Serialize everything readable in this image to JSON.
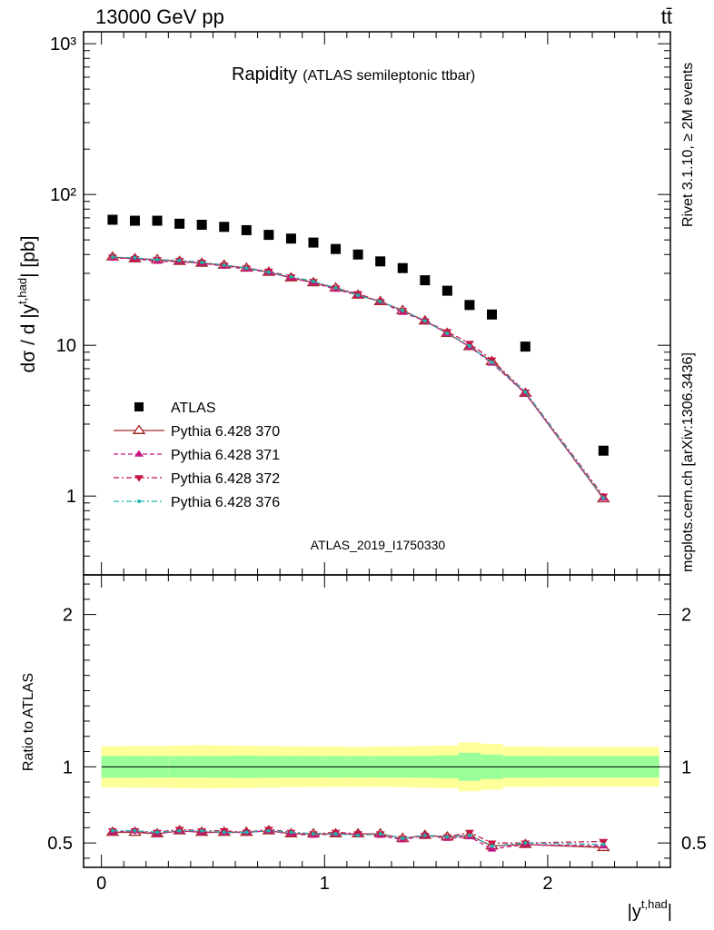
{
  "header": {
    "energy_label": "13000 GeV pp",
    "process_label": "tt̄"
  },
  "side_text": {
    "rivet": "Rivet 3.1.10, ≥ 2M events",
    "mcplots": "mcplots.cern.ch [arXiv:1306.3436]"
  },
  "chart_data": [
    {
      "type": "scatter",
      "title": "Rapidity",
      "subtitle": "(ATLAS semileptonic ttbar)",
      "analysis_label": "ATLAS_2019_I1750330",
      "ylabel": "dσ / d |y^{t,had}| [pb]",
      "y_scale": "log",
      "xlim": [
        -0.08,
        2.55
      ],
      "ylim": [
        0.3,
        1200
      ],
      "y_tick_labels": [
        "1",
        "10",
        "10²",
        "10³"
      ],
      "x_bin_edges": [
        0.0,
        0.1,
        0.2,
        0.3,
        0.4,
        0.5,
        0.6,
        0.7,
        0.8,
        0.9,
        1.0,
        1.1,
        1.2,
        1.3,
        1.4,
        1.5,
        1.6,
        1.7,
        1.8,
        2.0,
        2.5
      ],
      "x": [
        0.05,
        0.15,
        0.25,
        0.35,
        0.45,
        0.55,
        0.65,
        0.75,
        0.85,
        0.95,
        1.05,
        1.15,
        1.25,
        1.35,
        1.45,
        1.55,
        1.65,
        1.75,
        1.9,
        2.25
      ],
      "legend_position": "lower-left",
      "series": [
        {
          "name": "ATLAS",
          "style": "data-square",
          "color": "#000000",
          "values": [
            68,
            67,
            67,
            64,
            63,
            61,
            58,
            54,
            51,
            48,
            43.5,
            40,
            36,
            32.5,
            27,
            23,
            18.5,
            16,
            9.8,
            2.0
          ]
        },
        {
          "name": "Pythia 6.428 370",
          "style": "open-triangle-up-solid",
          "color": "#a52a2a",
          "values": [
            38.5,
            37.5,
            37,
            36,
            35,
            34,
            32.5,
            30.5,
            28,
            26,
            24,
            21.5,
            19.5,
            17,
            14.5,
            12,
            9.8,
            7.8,
            4.8,
            0.96
          ]
        },
        {
          "name": "Pythia 6.428 371",
          "style": "filled-triangle-up-dashed",
          "color": "#c71585",
          "values": [
            38,
            37.5,
            36,
            36,
            35,
            33.5,
            32,
            30.5,
            28,
            26,
            23.5,
            21.5,
            19.5,
            16.5,
            14.5,
            12,
            9.8,
            7.6,
            4.8,
            0.97
          ]
        },
        {
          "name": "Pythia 6.428 372",
          "style": "filled-triangle-down-dashdot",
          "color": "#c71545",
          "values": [
            38.5,
            37.5,
            37,
            36.5,
            35.5,
            34,
            32.5,
            31,
            28.5,
            26.5,
            24,
            22,
            19.5,
            17,
            14.5,
            12.3,
            10.3,
            8.0,
            4.9,
            1.0
          ]
        },
        {
          "name": "Pythia 6.428 376",
          "style": "dot-dashdot",
          "color": "#20b2aa",
          "values": [
            38.5,
            38,
            37,
            36.5,
            35.5,
            34,
            32.5,
            30.5,
            28.5,
            26.5,
            24,
            21.5,
            19.5,
            17,
            14.5,
            12,
            9.9,
            7.7,
            4.9,
            0.97
          ]
        }
      ]
    },
    {
      "type": "scatter",
      "ylabel": "Ratio to ATLAS",
      "xlabel": "|y^{t,had}|",
      "xlim": [
        -0.08,
        2.55
      ],
      "ylim": [
        0.34,
        2.26
      ],
      "x_tick_labels": [
        "0",
        "1",
        "2"
      ],
      "y_tick_labels": [
        "0.5",
        "1",
        "2"
      ],
      "band_inner_halfwidth": [
        0.072,
        0.072,
        0.07,
        0.07,
        0.071,
        0.072,
        0.073,
        0.072,
        0.071,
        0.07,
        0.07,
        0.07,
        0.07,
        0.071,
        0.072,
        0.075,
        0.092,
        0.08,
        0.072,
        0.07
      ],
      "band_outer_halfwidth": [
        0.135,
        0.136,
        0.137,
        0.14,
        0.142,
        0.14,
        0.138,
        0.136,
        0.134,
        0.133,
        0.132,
        0.131,
        0.132,
        0.134,
        0.137,
        0.14,
        0.16,
        0.15,
        0.132,
        0.13
      ],
      "series": [
        {
          "name": "Pythia 6.428 370",
          "values": [
            0.57,
            0.57,
            0.56,
            0.58,
            0.57,
            0.57,
            0.57,
            0.58,
            0.56,
            0.56,
            0.56,
            0.56,
            0.56,
            0.53,
            0.55,
            0.54,
            0.55,
            0.48,
            0.49,
            0.47
          ]
        },
        {
          "name": "Pythia 6.428 371",
          "values": [
            0.57,
            0.58,
            0.56,
            0.58,
            0.57,
            0.57,
            0.57,
            0.58,
            0.56,
            0.55,
            0.56,
            0.56,
            0.55,
            0.52,
            0.55,
            0.53,
            0.54,
            0.46,
            0.49,
            0.48
          ]
        },
        {
          "name": "Pythia 6.428 372",
          "values": [
            0.58,
            0.58,
            0.57,
            0.59,
            0.58,
            0.58,
            0.57,
            0.59,
            0.57,
            0.56,
            0.57,
            0.56,
            0.56,
            0.53,
            0.55,
            0.54,
            0.57,
            0.5,
            0.5,
            0.51
          ]
        },
        {
          "name": "Pythia 6.428 376",
          "values": [
            0.58,
            0.58,
            0.57,
            0.58,
            0.58,
            0.57,
            0.57,
            0.58,
            0.57,
            0.56,
            0.56,
            0.55,
            0.56,
            0.53,
            0.55,
            0.54,
            0.55,
            0.48,
            0.5,
            0.49
          ]
        }
      ]
    }
  ],
  "colors": {
    "band_inner": "#99ff99",
    "band_outer": "#ffff99",
    "analysis_label": "#999999",
    "side_text": "#888888"
  }
}
